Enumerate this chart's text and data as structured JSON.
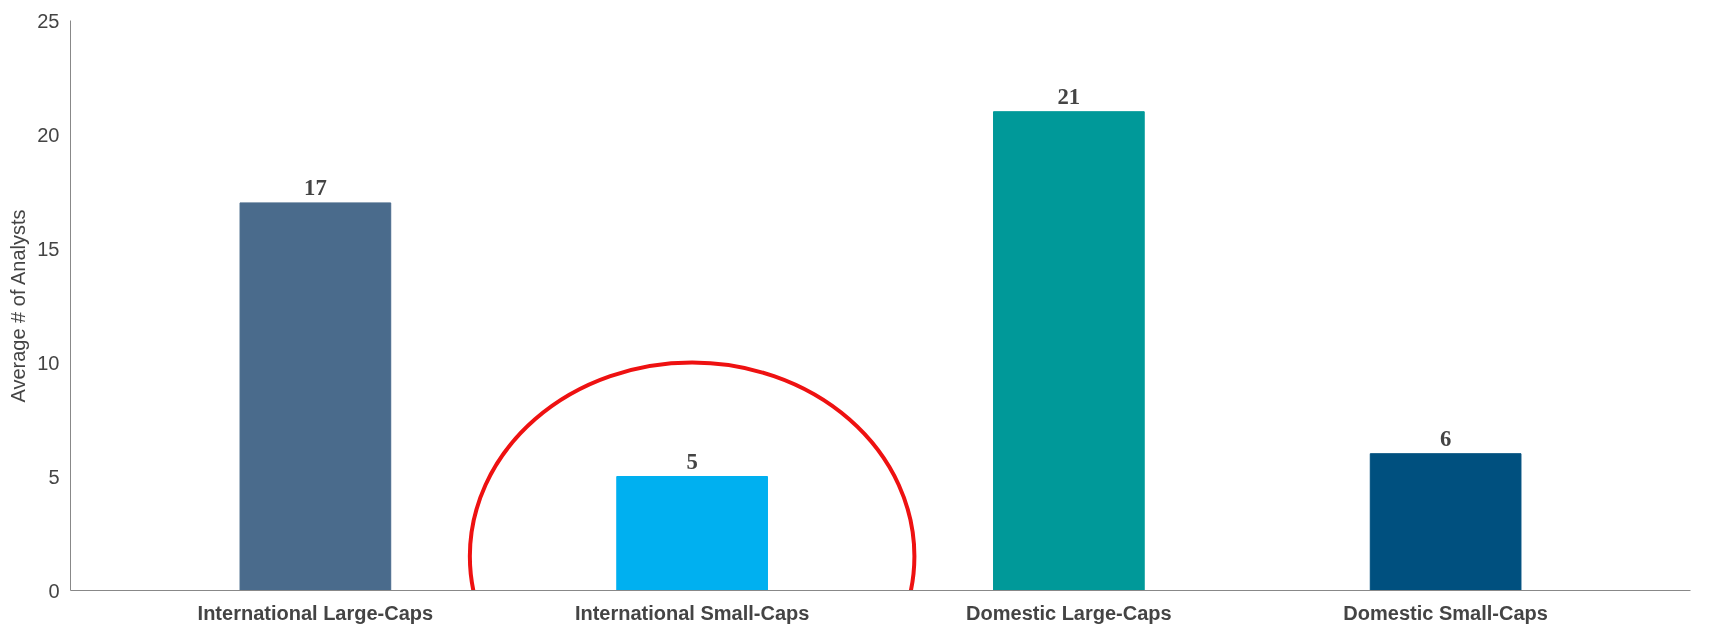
{
  "chart_data": {
    "type": "bar",
    "ylabel": "Average # of Analysts",
    "categories": [
      "International Large-Caps",
      "International Small-Caps",
      "Domestic Large-Caps",
      "Domestic Small-Caps"
    ],
    "values": [
      17,
      5,
      21,
      6
    ],
    "colors": [
      "#4a6b8c",
      "#00b0f0",
      "#009999",
      "#00507f"
    ],
    "ylim": [
      0,
      25
    ],
    "yticks": [
      0,
      5,
      10,
      15,
      20,
      25
    ],
    "grid": false,
    "data_labels": true
  }
}
